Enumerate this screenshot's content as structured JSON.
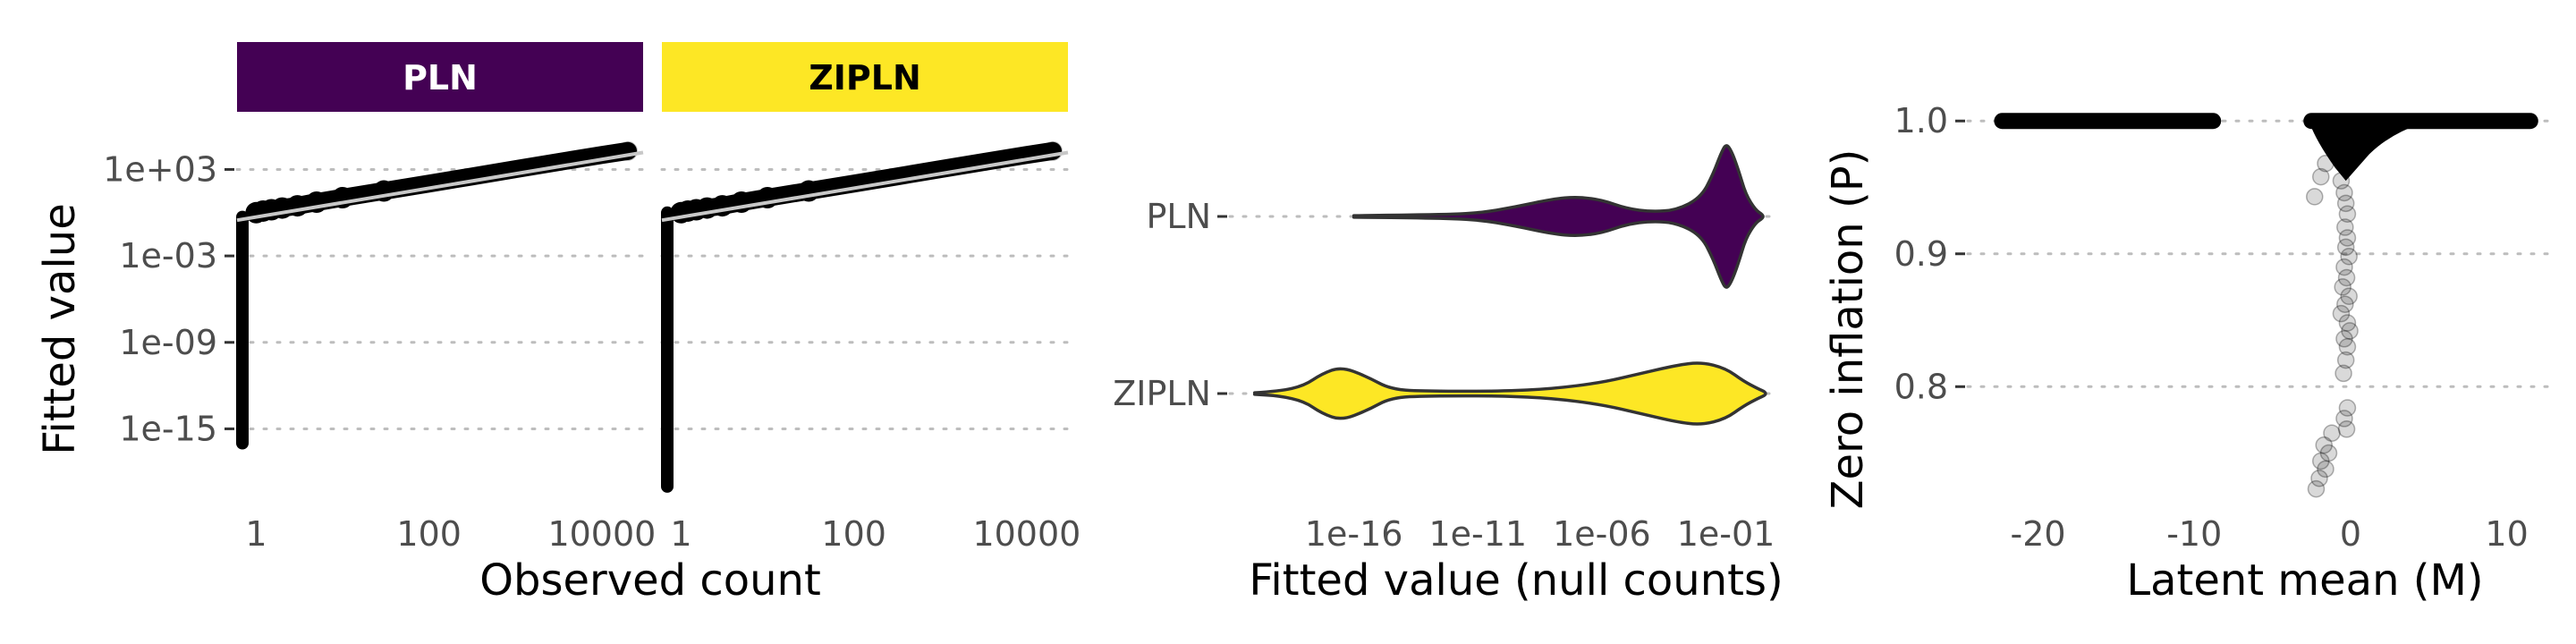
{
  "chart_data": [
    {
      "type": "scatter",
      "title": "",
      "xlabel": "Observed count",
      "ylabel": "Fitted value",
      "x_scale": "log10",
      "y_scale": "log10",
      "xlim": [
        0.6,
        30000
      ],
      "ylim": [
        1e-20,
        10000000.0
      ],
      "x_ticks": [
        1,
        100,
        10000
      ],
      "x_tick_labels": [
        "1",
        "100",
        "10000"
      ],
      "y_ticks": [
        1e-15,
        1e-09,
        0.001,
        1000.0
      ],
      "y_tick_labels": [
        "1e-15",
        "1e-09",
        "1e-03",
        "1e+03"
      ],
      "grid": "horizontal dotted",
      "facets": [
        {
          "name": "PLN",
          "strip_color": "#440154",
          "strip_text_color": "#ffffff",
          "zero_count_range": [
            1e-16,
            0.5
          ],
          "fit_line": [
            [
              0.6,
              0.3
            ],
            [
              30000,
              15000
            ]
          ],
          "points_positive": [
            [
              1,
              1
            ],
            [
              1.2,
              1.3
            ],
            [
              1.5,
              1.6
            ],
            [
              2,
              2.1
            ],
            [
              3,
              3
            ],
            [
              5,
              5.4
            ],
            [
              10,
              11
            ],
            [
              30,
              32
            ],
            [
              100,
              105
            ],
            [
              300,
              310
            ],
            [
              1000,
              1050
            ],
            [
              3000,
              3100
            ],
            [
              10000,
              10200
            ],
            [
              20000,
              19000
            ]
          ]
        },
        {
          "name": "ZIPLN",
          "strip_color": "#fde725",
          "strip_text_color": "#000000",
          "zero_count_range": [
            1e-19,
            1
          ],
          "fit_line": [
            [
              0.6,
              0.3
            ],
            [
              30000,
              15000
            ]
          ],
          "points_positive": [
            [
              1,
              1
            ],
            [
              1.2,
              1.3
            ],
            [
              1.5,
              1.6
            ],
            [
              2,
              2.1
            ],
            [
              3,
              3
            ],
            [
              5,
              5.4
            ],
            [
              10,
              11
            ],
            [
              30,
              32
            ],
            [
              100,
              105
            ],
            [
              300,
              310
            ],
            [
              1000,
              1050
            ],
            [
              3000,
              3100
            ],
            [
              10000,
              10200
            ],
            [
              20000,
              19000
            ]
          ]
        }
      ]
    },
    {
      "type": "violin",
      "title": "",
      "xlabel": "Fitted value (null counts)",
      "ylabel": "",
      "x_scale": "log10",
      "xlim": [
        1e-21,
        10
      ],
      "x_ticks": [
        1e-16,
        1e-11,
        1e-06,
        0.1
      ],
      "x_tick_labels": [
        "1e-16",
        "1e-11",
        "1e-06",
        "1e-01"
      ],
      "categories": [
        "PLN",
        "ZIPLN"
      ],
      "grid": "horizontal dotted",
      "series": [
        {
          "name": "PLN",
          "color": "#440154",
          "range": [
            1e-16,
            3
          ],
          "density": [
            [
              -16,
              0.01
            ],
            [
              -13,
              0.02
            ],
            [
              -11,
              0.04
            ],
            [
              -9.5,
              0.12
            ],
            [
              -8,
              0.22
            ],
            [
              -7,
              0.25
            ],
            [
              -6,
              0.21
            ],
            [
              -5,
              0.1
            ],
            [
              -4,
              0.06
            ],
            [
              -3,
              0.08
            ],
            [
              -2,
              0.24
            ],
            [
              -1.5,
              0.55
            ],
            [
              -1.2,
              0.8
            ],
            [
              -1,
              0.92
            ],
            [
              -0.8,
              0.85
            ],
            [
              -0.5,
              0.6
            ],
            [
              -0.2,
              0.28
            ],
            [
              0.2,
              0.08
            ],
            [
              0.5,
              0.02
            ]
          ]
        },
        {
          "name": "ZIPLN",
          "color": "#fde725",
          "range": [
            1e-20,
            3
          ],
          "density": [
            [
              -20,
              0.01
            ],
            [
              -19,
              0.03
            ],
            [
              -18,
              0.1
            ],
            [
              -17.3,
              0.25
            ],
            [
              -16.5,
              0.34
            ],
            [
              -15.5,
              0.22
            ],
            [
              -14.5,
              0.05
            ],
            [
              -13,
              0.03
            ],
            [
              -10,
              0.03
            ],
            [
              -8,
              0.06
            ],
            [
              -6,
              0.14
            ],
            [
              -4.5,
              0.25
            ],
            [
              -3,
              0.36
            ],
            [
              -2,
              0.4
            ],
            [
              -1,
              0.32
            ],
            [
              -0.3,
              0.16
            ],
            [
              0.3,
              0.06
            ],
            [
              0.6,
              0.02
            ]
          ]
        }
      ]
    },
    {
      "type": "scatter",
      "title": "",
      "xlabel": "Latent mean (M)",
      "ylabel": "Zero inflation (P)",
      "xlim": [
        -24.5,
        13
      ],
      "ylim": [
        0.714,
        1.017
      ],
      "x_ticks": [
        -20,
        -10,
        0,
        10
      ],
      "x_tick_labels": [
        "-20",
        "-10",
        "0",
        "10"
      ],
      "y_ticks": [
        0.8,
        0.9,
        1.0
      ],
      "y_tick_labels": [
        "0.8",
        "0.9",
        "1.0"
      ],
      "grid": "horizontal dotted",
      "point_color": "#000000",
      "point_alpha": 0.15,
      "clusters": [
        {
          "x_range": [
            -22.3,
            -8.8
          ],
          "y": 1.0
        },
        {
          "x_range": [
            -2.5,
            11.5
          ],
          "y": 1.0
        }
      ],
      "points": [
        [
          -2.3,
          0.943
        ],
        [
          -1.9,
          0.958
        ],
        [
          -1.6,
          0.968
        ],
        [
          -0.6,
          0.955
        ],
        [
          -0.4,
          0.946
        ],
        [
          -0.3,
          0.938
        ],
        [
          -0.2,
          0.93
        ],
        [
          -0.35,
          0.92
        ],
        [
          -0.2,
          0.912
        ],
        [
          -0.3,
          0.905
        ],
        [
          -0.1,
          0.898
        ],
        [
          -0.4,
          0.89
        ],
        [
          -0.25,
          0.882
        ],
        [
          -0.5,
          0.875
        ],
        [
          -0.1,
          0.868
        ],
        [
          -0.35,
          0.862
        ],
        [
          -0.6,
          0.855
        ],
        [
          -0.2,
          0.848
        ],
        [
          -0.05,
          0.842
        ],
        [
          -0.4,
          0.836
        ],
        [
          -0.2,
          0.83
        ],
        [
          -0.3,
          0.82
        ],
        [
          -0.45,
          0.81
        ],
        [
          -0.2,
          0.784
        ],
        [
          -0.4,
          0.776
        ],
        [
          -0.25,
          0.768
        ],
        [
          -1.2,
          0.765
        ],
        [
          -1.7,
          0.756
        ],
        [
          -1.4,
          0.75
        ],
        [
          -1.9,
          0.744
        ],
        [
          -1.6,
          0.738
        ],
        [
          -2.0,
          0.731
        ],
        [
          -2.2,
          0.723
        ]
      ]
    }
  ]
}
